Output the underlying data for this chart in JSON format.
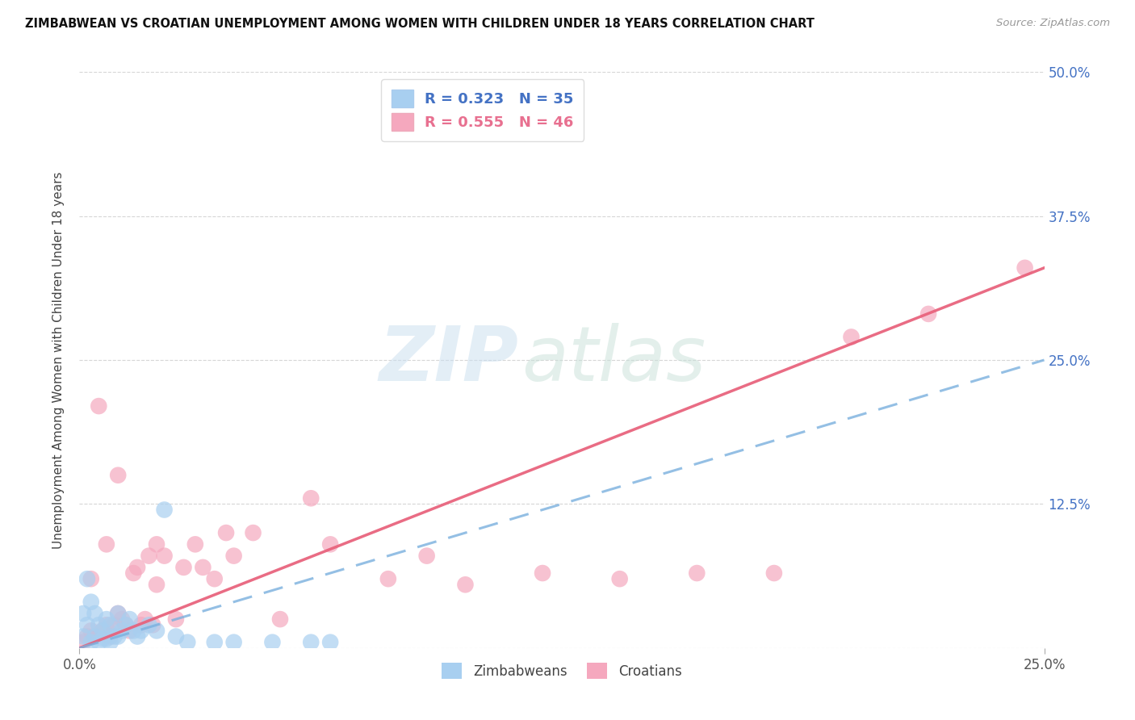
{
  "title": "ZIMBABWEAN VS CROATIAN UNEMPLOYMENT AMONG WOMEN WITH CHILDREN UNDER 18 YEARS CORRELATION CHART",
  "source": "Source: ZipAtlas.com",
  "ylabel": "Unemployment Among Women with Children Under 18 years",
  "x_range": [
    0.0,
    0.25
  ],
  "y_range": [
    0.0,
    0.5
  ],
  "blue_R": 0.323,
  "blue_N": 35,
  "pink_R": 0.555,
  "pink_N": 46,
  "blue_color": "#a8cff0",
  "pink_color": "#f5a8be",
  "blue_line_color": "#7ab0de",
  "pink_line_color": "#e8607a",
  "blue_line_slope": 1.0,
  "blue_line_intercept": 0.0,
  "pink_line_slope": 1.32,
  "pink_line_intercept": 0.0,
  "x_ticks": [
    0.0,
    0.25
  ],
  "x_tick_labels": [
    "0.0%",
    "25.0%"
  ],
  "y_ticks": [
    0.0,
    0.125,
    0.25,
    0.375,
    0.5
  ],
  "y_tick_labels": [
    "",
    "12.5%",
    "25.0%",
    "37.5%",
    "50.0%"
  ],
  "zim_x": [
    0.001,
    0.001,
    0.002,
    0.002,
    0.003,
    0.003,
    0.004,
    0.004,
    0.005,
    0.005,
    0.006,
    0.006,
    0.007,
    0.007,
    0.008,
    0.008,
    0.009,
    0.01,
    0.01,
    0.011,
    0.012,
    0.013,
    0.014,
    0.015,
    0.016,
    0.018,
    0.02,
    0.022,
    0.025,
    0.028,
    0.035,
    0.04,
    0.05,
    0.06,
    0.065
  ],
  "zim_y": [
    0.03,
    0.01,
    0.06,
    0.02,
    0.04,
    0.005,
    0.03,
    0.01,
    0.02,
    0.005,
    0.015,
    0.008,
    0.025,
    0.008,
    0.02,
    0.005,
    0.01,
    0.03,
    0.01,
    0.015,
    0.02,
    0.025,
    0.015,
    0.01,
    0.015,
    0.02,
    0.015,
    0.12,
    0.01,
    0.005,
    0.005,
    0.005,
    0.005,
    0.005,
    0.005
  ],
  "cro_x": [
    0.001,
    0.002,
    0.003,
    0.003,
    0.004,
    0.005,
    0.006,
    0.007,
    0.007,
    0.008,
    0.009,
    0.01,
    0.01,
    0.011,
    0.012,
    0.013,
    0.014,
    0.015,
    0.016,
    0.017,
    0.018,
    0.019,
    0.02,
    0.02,
    0.022,
    0.025,
    0.027,
    0.03,
    0.032,
    0.035,
    0.038,
    0.04,
    0.045,
    0.052,
    0.06,
    0.065,
    0.08,
    0.09,
    0.1,
    0.12,
    0.14,
    0.16,
    0.18,
    0.2,
    0.22,
    0.245
  ],
  "cro_y": [
    0.005,
    0.01,
    0.015,
    0.06,
    0.01,
    0.21,
    0.015,
    0.02,
    0.09,
    0.01,
    0.02,
    0.03,
    0.15,
    0.025,
    0.02,
    0.015,
    0.065,
    0.07,
    0.02,
    0.025,
    0.08,
    0.02,
    0.055,
    0.09,
    0.08,
    0.025,
    0.07,
    0.09,
    0.07,
    0.06,
    0.1,
    0.08,
    0.1,
    0.025,
    0.13,
    0.09,
    0.06,
    0.08,
    0.055,
    0.065,
    0.06,
    0.065,
    0.065,
    0.27,
    0.29,
    0.33
  ]
}
